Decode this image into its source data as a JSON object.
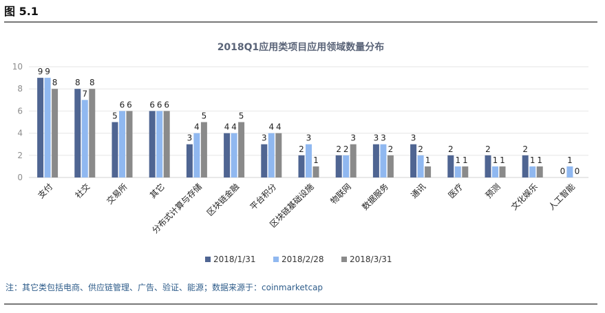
{
  "figure_label": "图 5.1",
  "note": "注：其它类包括电商、供应链管理、广告、验证、能源；数据来源于：coinmarketcap",
  "chart_data": {
    "type": "bar",
    "title": "2018Q1应用类项目应用领域数量分布",
    "xlabel": "",
    "ylabel": "",
    "ylim": [
      0,
      10
    ],
    "yticks": [
      0,
      2,
      4,
      6,
      8,
      10
    ],
    "grid": true,
    "legend_position": "bottom",
    "categories": [
      "支付",
      "社交",
      "交易所",
      "其它",
      "分布式计算与存储",
      "区块链金融",
      "平台积分",
      "区块链基础设施",
      "物联网",
      "数据服务",
      "通讯",
      "医疗",
      "预测",
      "文化娱乐",
      "人工智能"
    ],
    "series": [
      {
        "name": "2018/1/31",
        "color": "#4f6592",
        "values": [
          9,
          8,
          5,
          6,
          3,
          4,
          3,
          2,
          2,
          3,
          3,
          2,
          2,
          2,
          0
        ]
      },
      {
        "name": "2018/2/28",
        "color": "#90b8f0",
        "values": [
          9,
          7,
          6,
          6,
          4,
          4,
          4,
          3,
          2,
          3,
          2,
          1,
          1,
          1,
          1
        ]
      },
      {
        "name": "2018/3/31",
        "color": "#8a8a8a",
        "values": [
          8,
          8,
          6,
          6,
          5,
          5,
          4,
          1,
          3,
          2,
          1,
          1,
          1,
          1,
          0
        ]
      }
    ]
  }
}
